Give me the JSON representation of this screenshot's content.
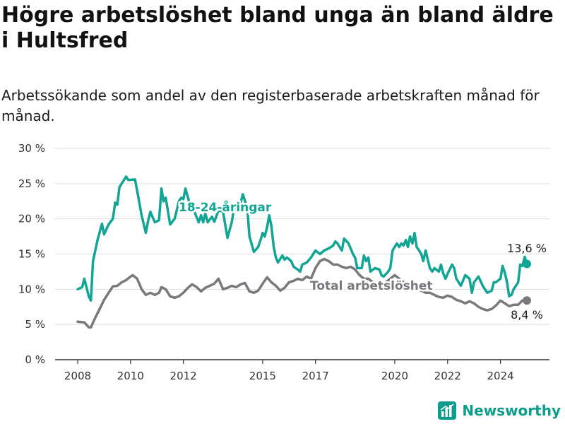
{
  "title": "Högre arbetslöshet bland unga än bland äldre i Hultsfred",
  "subtitle": "Arbetssökande som andel av den registerbaserade arbetskraften månad för månad.",
  "brand": {
    "name": "Newsworthy",
    "icon": "bar-chart-icon",
    "color": "#0e9c8c"
  },
  "chart_data": {
    "type": "line",
    "ylim": [
      0,
      30
    ],
    "y_ticks": [
      {
        "value": 0,
        "label": "0 %"
      },
      {
        "value": 5,
        "label": "5 %"
      },
      {
        "value": 10,
        "label": "10 %"
      },
      {
        "value": 15,
        "label": "15 %"
      },
      {
        "value": 20,
        "label": "20 %"
      },
      {
        "value": 25,
        "label": "25 %"
      },
      {
        "value": 30,
        "label": "30 %"
      }
    ],
    "x_ticks": [
      {
        "value": 2008,
        "label": "2008"
      },
      {
        "value": 2010,
        "label": "2010"
      },
      {
        "value": 2012,
        "label": "2012"
      },
      {
        "value": 2015,
        "label": "2015"
      },
      {
        "value": 2017,
        "label": "2017"
      },
      {
        "value": 2020,
        "label": "2020"
      },
      {
        "value": 2022,
        "label": "2022"
      },
      {
        "value": 2024,
        "label": "2024"
      }
    ],
    "grid": true,
    "series": [
      {
        "name": "18-24-åringar",
        "color": "#12a594",
        "end_label": "13,6 %",
        "points": [
          [
            2008.0,
            10.0
          ],
          [
            2008.17,
            10.3
          ],
          [
            2008.25,
            11.5
          ],
          [
            2008.42,
            9.0
          ],
          [
            2008.5,
            8.4
          ],
          [
            2008.58,
            14.0
          ],
          [
            2008.75,
            17.0
          ],
          [
            2008.92,
            19.3
          ],
          [
            2009.0,
            17.8
          ],
          [
            2009.17,
            19.2
          ],
          [
            2009.33,
            20.0
          ],
          [
            2009.42,
            22.3
          ],
          [
            2009.5,
            22.0
          ],
          [
            2009.58,
            24.5
          ],
          [
            2009.75,
            25.5
          ],
          [
            2009.83,
            26.0
          ],
          [
            2009.92,
            25.5
          ],
          [
            2010.17,
            25.6
          ],
          [
            2010.25,
            24.0
          ],
          [
            2010.42,
            20.5
          ],
          [
            2010.58,
            18.0
          ],
          [
            2010.67,
            19.8
          ],
          [
            2010.75,
            21.0
          ],
          [
            2010.92,
            19.5
          ],
          [
            2011.08,
            19.8
          ],
          [
            2011.17,
            24.3
          ],
          [
            2011.25,
            22.5
          ],
          [
            2011.33,
            23.0
          ],
          [
            2011.5,
            19.2
          ],
          [
            2011.67,
            20.0
          ],
          [
            2011.83,
            22.5
          ],
          [
            2011.92,
            23.0
          ],
          [
            2012.0,
            22.8
          ],
          [
            2012.08,
            24.3
          ],
          [
            2012.25,
            22.0
          ],
          [
            2012.42,
            21.0
          ],
          [
            2012.58,
            19.5
          ],
          [
            2012.67,
            20.5
          ],
          [
            2012.75,
            19.5
          ],
          [
            2012.83,
            20.8
          ],
          [
            2012.92,
            19.5
          ],
          [
            2013.08,
            20.3
          ],
          [
            2013.17,
            19.6
          ],
          [
            2013.33,
            21.2
          ],
          [
            2013.5,
            21.0
          ],
          [
            2013.67,
            17.3
          ],
          [
            2013.83,
            19.5
          ],
          [
            2013.92,
            21.5
          ],
          [
            2014.08,
            21.0
          ],
          [
            2014.25,
            23.5
          ],
          [
            2014.42,
            21.5
          ],
          [
            2014.5,
            17.5
          ],
          [
            2014.67,
            15.3
          ],
          [
            2014.83,
            16.0
          ],
          [
            2014.92,
            17.0
          ],
          [
            2015.0,
            18.0
          ],
          [
            2015.08,
            17.5
          ],
          [
            2015.17,
            18.8
          ],
          [
            2015.25,
            20.5
          ],
          [
            2015.33,
            19.0
          ],
          [
            2015.42,
            16.0
          ],
          [
            2015.5,
            14.5
          ],
          [
            2015.58,
            13.8
          ],
          [
            2015.75,
            14.8
          ],
          [
            2015.83,
            14.2
          ],
          [
            2015.92,
            14.5
          ],
          [
            2016.08,
            14.0
          ],
          [
            2016.17,
            13.2
          ],
          [
            2016.33,
            12.8
          ],
          [
            2016.42,
            12.5
          ],
          [
            2016.5,
            13.5
          ],
          [
            2016.67,
            13.8
          ],
          [
            2016.83,
            14.5
          ],
          [
            2017.0,
            15.5
          ],
          [
            2017.17,
            15.0
          ],
          [
            2017.33,
            15.5
          ],
          [
            2017.5,
            15.8
          ],
          [
            2017.67,
            16.2
          ],
          [
            2017.75,
            16.8
          ],
          [
            2017.83,
            16.5
          ],
          [
            2018.0,
            15.5
          ],
          [
            2018.08,
            17.2
          ],
          [
            2018.25,
            16.5
          ],
          [
            2018.42,
            15.0
          ],
          [
            2018.5,
            14.5
          ],
          [
            2018.58,
            13.0
          ],
          [
            2018.75,
            13.0
          ],
          [
            2018.83,
            14.8
          ],
          [
            2018.92,
            14.0
          ],
          [
            2019.0,
            14.5
          ],
          [
            2019.08,
            12.5
          ],
          [
            2019.25,
            13.0
          ],
          [
            2019.42,
            12.8
          ],
          [
            2019.5,
            12.0
          ],
          [
            2019.58,
            11.8
          ],
          [
            2019.75,
            12.5
          ],
          [
            2019.83,
            13.0
          ],
          [
            2019.92,
            15.5
          ],
          [
            2020.08,
            16.5
          ],
          [
            2020.17,
            16.0
          ],
          [
            2020.25,
            16.5
          ],
          [
            2020.33,
            16.2
          ],
          [
            2020.42,
            17.0
          ],
          [
            2020.5,
            16.0
          ],
          [
            2020.58,
            17.5
          ],
          [
            2020.67,
            16.5
          ],
          [
            2020.75,
            18.0
          ],
          [
            2020.83,
            16.0
          ],
          [
            2020.92,
            15.5
          ],
          [
            2021.0,
            15.0
          ],
          [
            2021.08,
            14.0
          ],
          [
            2021.17,
            15.5
          ],
          [
            2021.25,
            14.2
          ],
          [
            2021.33,
            13.0
          ],
          [
            2021.42,
            12.5
          ],
          [
            2021.5,
            13.0
          ],
          [
            2021.67,
            12.5
          ],
          [
            2021.75,
            13.5
          ],
          [
            2021.83,
            12.3
          ],
          [
            2021.92,
            11.5
          ],
          [
            2022.0,
            12.2
          ],
          [
            2022.17,
            13.5
          ],
          [
            2022.25,
            13.0
          ],
          [
            2022.33,
            11.5
          ],
          [
            2022.5,
            10.5
          ],
          [
            2022.67,
            12.0
          ],
          [
            2022.83,
            11.5
          ],
          [
            2022.92,
            9.5
          ],
          [
            2023.0,
            11.0
          ],
          [
            2023.17,
            11.8
          ],
          [
            2023.33,
            10.5
          ],
          [
            2023.5,
            9.5
          ],
          [
            2023.67,
            9.8
          ],
          [
            2023.75,
            11.0
          ],
          [
            2023.83,
            11.0
          ],
          [
            2024.0,
            11.5
          ],
          [
            2024.08,
            13.3
          ],
          [
            2024.17,
            12.3
          ],
          [
            2024.25,
            11.0
          ],
          [
            2024.33,
            9.0
          ],
          [
            2024.42,
            9.2
          ],
          [
            2024.5,
            10.0
          ],
          [
            2024.67,
            11.0
          ],
          [
            2024.75,
            13.5
          ],
          [
            2024.83,
            13.3
          ],
          [
            2024.92,
            14.6
          ],
          [
            2025.0,
            13.6
          ]
        ]
      },
      {
        "name": "Total arbetslöshet",
        "color": "#78787d",
        "end_label": "8,4 %",
        "points": [
          [
            2008.0,
            5.4
          ],
          [
            2008.25,
            5.3
          ],
          [
            2008.42,
            4.6
          ],
          [
            2008.5,
            4.6
          ],
          [
            2008.67,
            6.0
          ],
          [
            2008.83,
            7.2
          ],
          [
            2009.0,
            8.5
          ],
          [
            2009.17,
            9.5
          ],
          [
            2009.33,
            10.4
          ],
          [
            2009.5,
            10.5
          ],
          [
            2009.67,
            11.0
          ],
          [
            2009.83,
            11.3
          ],
          [
            2010.0,
            11.8
          ],
          [
            2010.08,
            12.0
          ],
          [
            2010.25,
            11.5
          ],
          [
            2010.42,
            10.0
          ],
          [
            2010.58,
            9.2
          ],
          [
            2010.75,
            9.5
          ],
          [
            2010.92,
            9.2
          ],
          [
            2011.08,
            9.5
          ],
          [
            2011.17,
            10.3
          ],
          [
            2011.33,
            10.0
          ],
          [
            2011.5,
            9.0
          ],
          [
            2011.67,
            8.8
          ],
          [
            2011.83,
            9.0
          ],
          [
            2012.0,
            9.5
          ],
          [
            2012.17,
            10.2
          ],
          [
            2012.33,
            10.7
          ],
          [
            2012.5,
            10.3
          ],
          [
            2012.67,
            9.7
          ],
          [
            2012.83,
            10.2
          ],
          [
            2013.0,
            10.5
          ],
          [
            2013.17,
            10.8
          ],
          [
            2013.33,
            11.5
          ],
          [
            2013.5,
            10.0
          ],
          [
            2013.67,
            10.2
          ],
          [
            2013.83,
            10.5
          ],
          [
            2014.0,
            10.3
          ],
          [
            2014.17,
            10.7
          ],
          [
            2014.33,
            10.9
          ],
          [
            2014.5,
            9.7
          ],
          [
            2014.67,
            9.5
          ],
          [
            2014.83,
            9.8
          ],
          [
            2015.0,
            10.8
          ],
          [
            2015.17,
            11.7
          ],
          [
            2015.33,
            11.0
          ],
          [
            2015.5,
            10.5
          ],
          [
            2015.67,
            9.8
          ],
          [
            2015.83,
            10.2
          ],
          [
            2016.0,
            11.0
          ],
          [
            2016.17,
            11.2
          ],
          [
            2016.33,
            11.5
          ],
          [
            2016.5,
            11.3
          ],
          [
            2016.67,
            11.8
          ],
          [
            2016.83,
            11.5
          ],
          [
            2017.0,
            13.0
          ],
          [
            2017.17,
            14.0
          ],
          [
            2017.33,
            14.3
          ],
          [
            2017.5,
            14.0
          ],
          [
            2017.67,
            13.5
          ],
          [
            2017.83,
            13.5
          ],
          [
            2018.0,
            13.2
          ],
          [
            2018.17,
            13.0
          ],
          [
            2018.33,
            13.2
          ],
          [
            2018.5,
            12.8
          ],
          [
            2018.67,
            12.0
          ],
          [
            2018.83,
            11.5
          ],
          [
            2019.0,
            11.5
          ],
          [
            2019.17,
            11.0
          ],
          [
            2019.33,
            10.8
          ],
          [
            2019.5,
            10.8
          ],
          [
            2019.67,
            11.0
          ],
          [
            2019.83,
            11.5
          ],
          [
            2020.0,
            12.0
          ],
          [
            2020.17,
            11.5
          ],
          [
            2020.33,
            11.0
          ],
          [
            2020.5,
            10.8
          ],
          [
            2020.67,
            10.5
          ],
          [
            2020.83,
            10.0
          ],
          [
            2021.0,
            9.8
          ],
          [
            2021.17,
            9.5
          ],
          [
            2021.33,
            9.5
          ],
          [
            2021.5,
            9.2
          ],
          [
            2021.67,
            8.9
          ],
          [
            2021.83,
            8.8
          ],
          [
            2022.0,
            9.1
          ],
          [
            2022.17,
            8.9
          ],
          [
            2022.33,
            8.5
          ],
          [
            2022.5,
            8.3
          ],
          [
            2022.67,
            8.0
          ],
          [
            2022.83,
            8.3
          ],
          [
            2023.0,
            8.0
          ],
          [
            2023.17,
            7.5
          ],
          [
            2023.33,
            7.2
          ],
          [
            2023.5,
            7.0
          ],
          [
            2023.67,
            7.2
          ],
          [
            2023.83,
            7.7
          ],
          [
            2024.0,
            8.4
          ],
          [
            2024.17,
            8.0
          ],
          [
            2024.33,
            7.6
          ],
          [
            2024.5,
            7.8
          ],
          [
            2024.67,
            7.8
          ],
          [
            2024.83,
            8.4
          ],
          [
            2025.0,
            8.4
          ]
        ]
      }
    ]
  }
}
